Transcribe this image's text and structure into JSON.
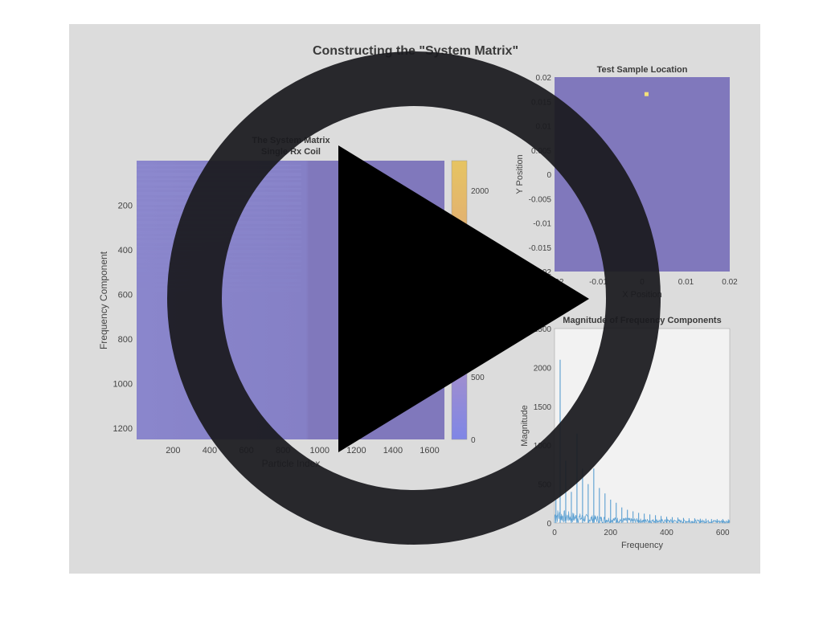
{
  "figure": {
    "title": "Constructing the \"System Matrix\""
  },
  "panels": {
    "system_matrix": {
      "title_line1": "The System Matrix",
      "title_line2": "Single Rx Coil",
      "xlabel": "Particle Index",
      "ylabel": "Frequency Component",
      "xticks": [
        "200",
        "400",
        "600",
        "800",
        "1000",
        "1200",
        "1400",
        "1600"
      ],
      "yticks": [
        "200",
        "400",
        "600",
        "800",
        "1000",
        "1200"
      ],
      "colorbar_ticks": [
        "2000",
        "500",
        "0"
      ]
    },
    "sample_location": {
      "title": "Test Sample Location",
      "xlabel": "X Position",
      "ylabel": "Y Position",
      "xticks": [
        "-0.02",
        "-0.01",
        "0",
        "0.01",
        "0.02"
      ],
      "yticks": [
        "0.02",
        "0.015",
        "0.01",
        "0.005",
        "0",
        "-0.005",
        "-0.01",
        "-0.015",
        "-0.02"
      ]
    },
    "frequency_magnitude": {
      "title": "Magnitude of Frequency Components",
      "xlabel": "Frequency",
      "ylabel": "Magnitude",
      "xticks": [
        "0",
        "200",
        "400",
        "600"
      ],
      "yticks": [
        "2500",
        "2000",
        "1500",
        "1000",
        "500",
        "0"
      ]
    }
  },
  "chart_data": [
    {
      "type": "heatmap",
      "title": "The System Matrix Single Rx Coil",
      "xlabel": "Particle Index",
      "ylabel": "Frequency Component",
      "xlim": [
        1,
        1681
      ],
      "ylim": [
        1,
        1250
      ],
      "colorbar_range": [
        0,
        2300
      ]
    },
    {
      "type": "heatmap",
      "title": "Test Sample Location",
      "xlabel": "X Position",
      "ylabel": "Y Position",
      "xlim": [
        -0.02,
        0.02
      ],
      "ylim": [
        -0.02,
        0.02
      ],
      "marked_point": {
        "x": 0.001,
        "y": 0.0165
      }
    },
    {
      "type": "line",
      "title": "Magnitude of Frequency Components",
      "xlabel": "Frequency",
      "ylabel": "Magnitude",
      "xlim": [
        0,
        625
      ],
      "ylim": [
        0,
        2500
      ],
      "peaks": [
        {
          "x": 5,
          "y": 300
        },
        {
          "x": 20,
          "y": 2100
        },
        {
          "x": 40,
          "y": 800
        },
        {
          "x": 60,
          "y": 400
        },
        {
          "x": 80,
          "y": 1150
        },
        {
          "x": 100,
          "y": 700
        },
        {
          "x": 120,
          "y": 500
        },
        {
          "x": 140,
          "y": 700
        },
        {
          "x": 160,
          "y": 450
        },
        {
          "x": 180,
          "y": 380
        },
        {
          "x": 200,
          "y": 300
        },
        {
          "x": 220,
          "y": 260
        },
        {
          "x": 240,
          "y": 200
        },
        {
          "x": 260,
          "y": 170
        },
        {
          "x": 280,
          "y": 150
        },
        {
          "x": 300,
          "y": 130
        },
        {
          "x": 320,
          "y": 120
        },
        {
          "x": 340,
          "y": 110
        },
        {
          "x": 360,
          "y": 100
        },
        {
          "x": 380,
          "y": 90
        },
        {
          "x": 400,
          "y": 80
        },
        {
          "x": 420,
          "y": 75
        },
        {
          "x": 440,
          "y": 70
        },
        {
          "x": 460,
          "y": 65
        },
        {
          "x": 480,
          "y": 60
        },
        {
          "x": 500,
          "y": 60
        },
        {
          "x": 520,
          "y": 55
        },
        {
          "x": 540,
          "y": 55
        },
        {
          "x": 560,
          "y": 50
        },
        {
          "x": 580,
          "y": 50
        },
        {
          "x": 600,
          "y": 50
        },
        {
          "x": 620,
          "y": 45
        }
      ]
    }
  ],
  "colors": {
    "figure_bg": "#dcdcdc",
    "matrix_fill": "#8078bc",
    "colorbar_top": "#e6c462",
    "colorbar_bottom": "#7f86e6",
    "sample_fill": "#8078bc",
    "sample_point": "#f4e07a",
    "spectrum_line": "#5a9fd1",
    "overlay": "#1a1a1e"
  },
  "play_button": {
    "icon": "play-icon"
  }
}
